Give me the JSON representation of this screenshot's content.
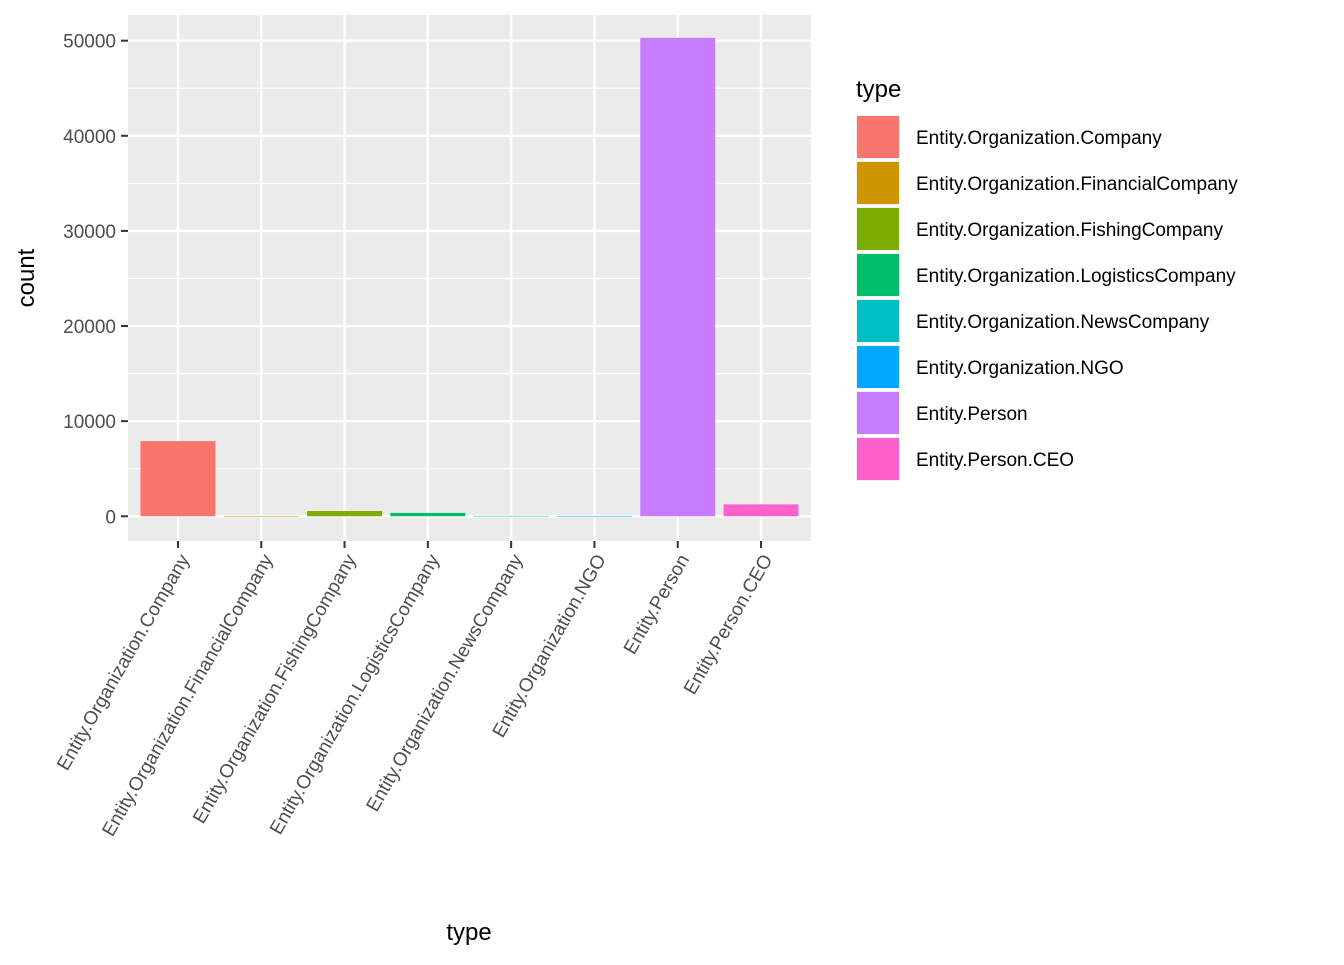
{
  "chart_data": {
    "type": "bar",
    "categories": [
      "Entity.Organization.Company",
      "Entity.Organization.FinancialCompany",
      "Entity.Organization.FishingCompany",
      "Entity.Organization.LogisticsCompany",
      "Entity.Organization.NewsCompany",
      "Entity.Organization.NGO",
      "Entity.Person",
      "Entity.Person.CEO"
    ],
    "values": [
      7900,
      20,
      550,
      350,
      40,
      30,
      50300,
      1250
    ],
    "colors": [
      "#F8766D",
      "#CD9600",
      "#7CAE00",
      "#00BE67",
      "#00BFC4",
      "#00A9FF",
      "#C77CFF",
      "#FF61CC"
    ],
    "xlabel": "type",
    "ylabel": "count",
    "ylim": [
      -2600,
      52700
    ],
    "yticks": [
      0,
      10000,
      20000,
      30000,
      40000,
      50000
    ],
    "grid": true,
    "legend": {
      "title": "type",
      "position": "right",
      "entries": [
        "Entity.Organization.Company",
        "Entity.Organization.FinancialCompany",
        "Entity.Organization.FishingCompany",
        "Entity.Organization.LogisticsCompany",
        "Entity.Organization.NewsCompany",
        "Entity.Organization.NGO",
        "Entity.Person",
        "Entity.Person.CEO"
      ]
    },
    "panel_background": "#EBEBEB",
    "grid_color": "#FFFFFF"
  }
}
